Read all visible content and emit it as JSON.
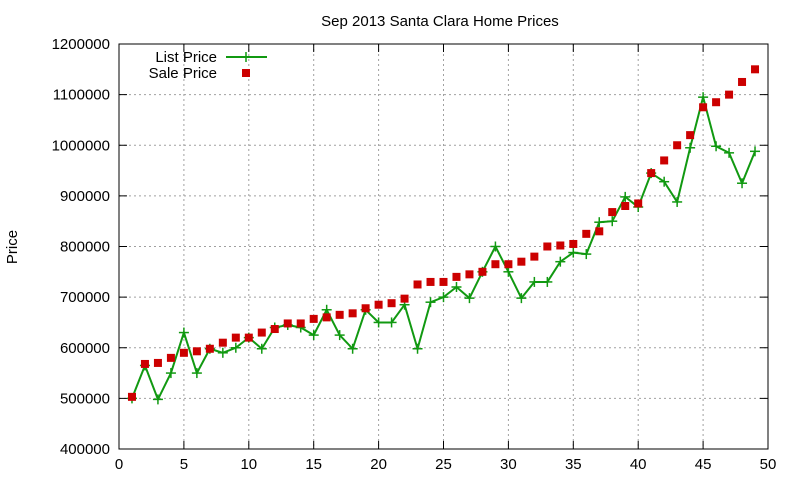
{
  "chart_data": {
    "type": "scatter",
    "title": "Sep 2013 Santa Clara Home Prices",
    "xlabel": "",
    "ylabel": "Price",
    "xlim": [
      0,
      50
    ],
    "ylim": [
      400000,
      1200000
    ],
    "x_ticks": [
      0,
      5,
      10,
      15,
      20,
      25,
      30,
      35,
      40,
      45,
      50
    ],
    "y_ticks": [
      400000,
      500000,
      600000,
      700000,
      800000,
      900000,
      1000000,
      1100000,
      1200000
    ],
    "grid": true,
    "legend_position": "top-left",
    "series": [
      {
        "name": "List Price",
        "style": "line-with-plus-markers",
        "color": "#119911",
        "x": [
          1,
          2,
          3,
          4,
          5,
          6,
          7,
          8,
          9,
          10,
          11,
          12,
          13,
          14,
          15,
          16,
          17,
          18,
          19,
          20,
          21,
          22,
          23,
          24,
          25,
          26,
          27,
          28,
          29,
          30,
          31,
          32,
          33,
          34,
          35,
          36,
          37,
          38,
          39,
          40,
          41,
          42,
          43,
          44,
          45,
          46,
          47,
          48,
          49
        ],
        "y": [
          500000,
          565000,
          498000,
          550000,
          630000,
          550000,
          598000,
          590000,
          600000,
          620000,
          598000,
          640000,
          645000,
          640000,
          625000,
          675000,
          625000,
          598000,
          675000,
          650000,
          650000,
          685000,
          598000,
          690000,
          700000,
          720000,
          698000,
          750000,
          800000,
          750000,
          698000,
          730000,
          730000,
          770000,
          788000,
          785000,
          848000,
          850000,
          898000,
          878000,
          945000,
          928000,
          888000,
          995000,
          1095000,
          998000,
          985000,
          925000,
          988000
        ]
      },
      {
        "name": "Sale Price",
        "style": "square-markers",
        "color": "#cc0000",
        "x": [
          1,
          2,
          3,
          4,
          5,
          6,
          7,
          8,
          9,
          10,
          11,
          12,
          13,
          14,
          15,
          16,
          17,
          18,
          19,
          20,
          21,
          22,
          23,
          24,
          25,
          26,
          27,
          28,
          29,
          30,
          31,
          32,
          33,
          34,
          35,
          36,
          37,
          38,
          39,
          40,
          41,
          42,
          43,
          44,
          45,
          46,
          47,
          48,
          49
        ],
        "y": [
          503000,
          568000,
          570000,
          580000,
          590000,
          593000,
          598000,
          610000,
          620000,
          620000,
          630000,
          637000,
          648000,
          648000,
          657000,
          660000,
          665000,
          668000,
          678000,
          685000,
          688000,
          697000,
          725000,
          730000,
          730000,
          740000,
          745000,
          750000,
          765000,
          765000,
          770000,
          780000,
          800000,
          802000,
          805000,
          825000,
          830000,
          868000,
          880000,
          885000,
          945000,
          970000,
          1000000,
          1020000,
          1075000,
          1085000,
          1100000,
          1125000,
          1150000
        ]
      }
    ]
  }
}
